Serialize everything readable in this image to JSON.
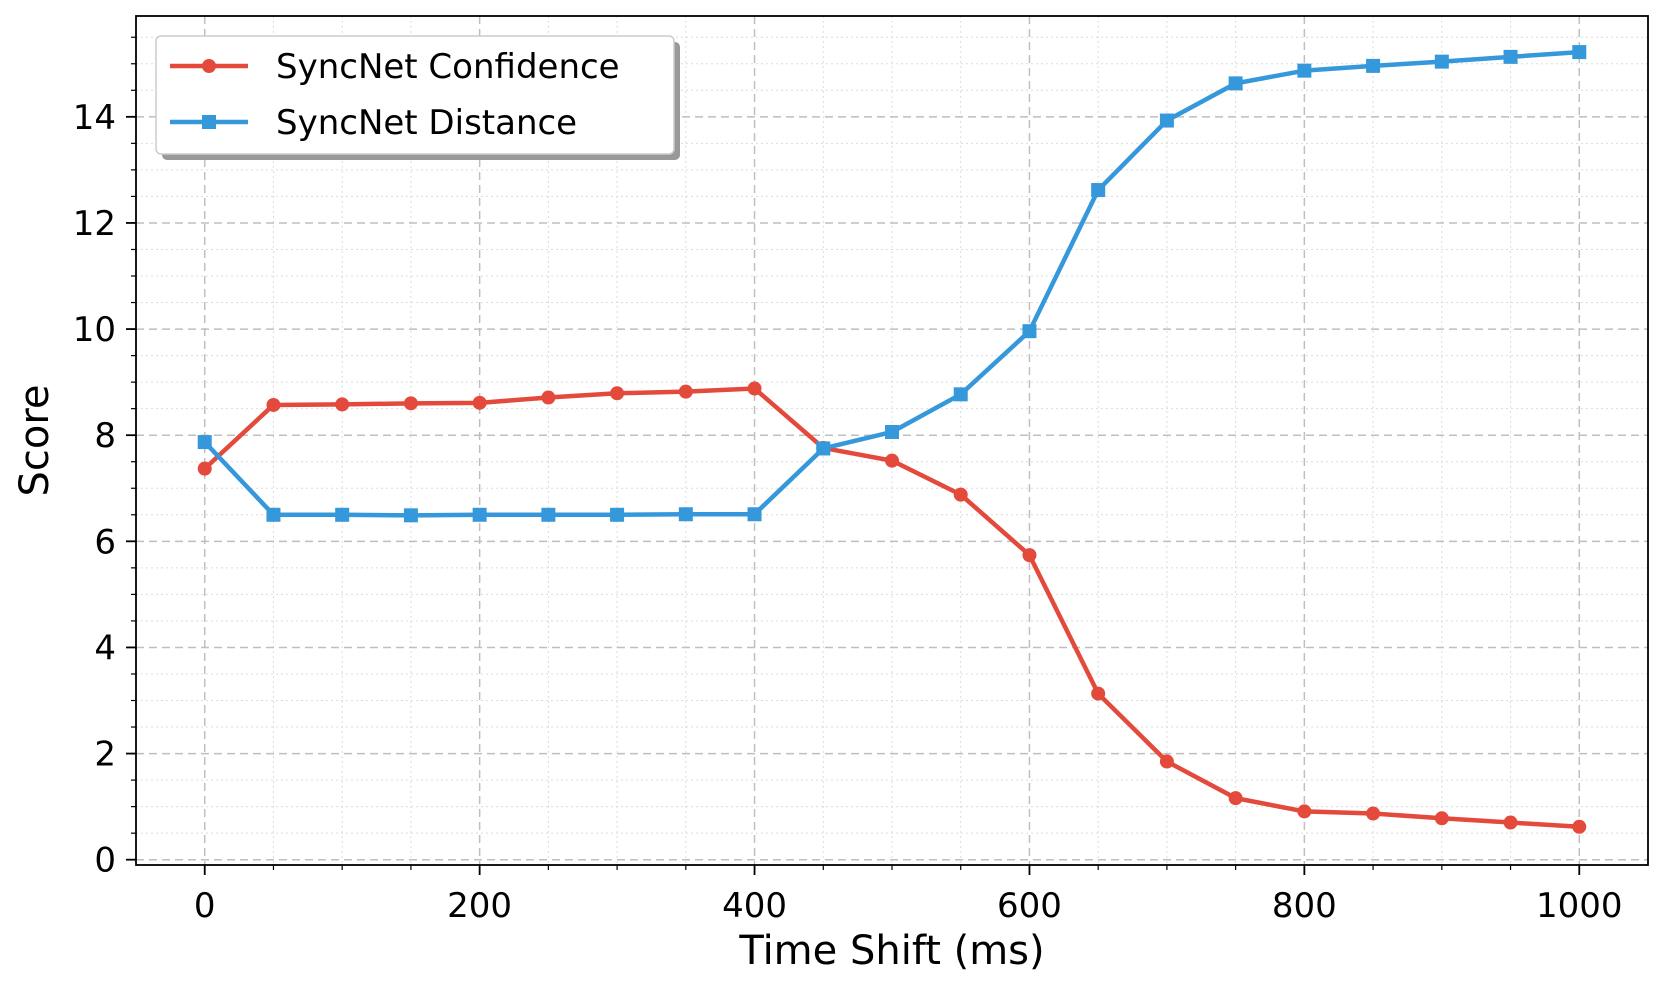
{
  "chart_data": {
    "type": "line",
    "title": "",
    "xlabel": "Time Shift (ms)",
    "ylabel": "Score",
    "x": [
      0,
      50,
      100,
      150,
      200,
      250,
      300,
      350,
      400,
      450,
      500,
      550,
      600,
      650,
      700,
      750,
      800,
      850,
      900,
      950,
      1000
    ],
    "xlim": [
      -50,
      1050
    ],
    "ylim": [
      -0.1,
      15.9
    ],
    "xticks": [
      0,
      200,
      400,
      600,
      800,
      1000
    ],
    "yticks": [
      0,
      2,
      4,
      6,
      8,
      10,
      12,
      14
    ],
    "xtick_labels": [
      "0",
      "200",
      "400",
      "600",
      "800",
      "1000"
    ],
    "ytick_labels": [
      "0",
      "2",
      "4",
      "6",
      "8",
      "10",
      "12",
      "14"
    ],
    "grid": true,
    "legend_position": "top-left",
    "series": [
      {
        "name": "SyncNet Confidence",
        "color": "#e34a3b",
        "marker": "circle",
        "values": [
          7.37,
          8.57,
          8.58,
          8.6,
          8.61,
          8.71,
          8.79,
          8.82,
          8.88,
          7.76,
          7.52,
          6.88,
          5.74,
          3.13,
          1.85,
          1.16,
          0.91,
          0.87,
          0.78,
          0.7,
          0.62
        ]
      },
      {
        "name": "SyncNet Distance",
        "color": "#3498db",
        "marker": "square",
        "values": [
          7.87,
          6.5,
          6.5,
          6.49,
          6.5,
          6.5,
          6.5,
          6.51,
          6.51,
          7.75,
          8.06,
          8.77,
          9.96,
          12.62,
          13.93,
          14.63,
          14.87,
          14.96,
          15.04,
          15.13,
          15.22
        ]
      }
    ]
  }
}
